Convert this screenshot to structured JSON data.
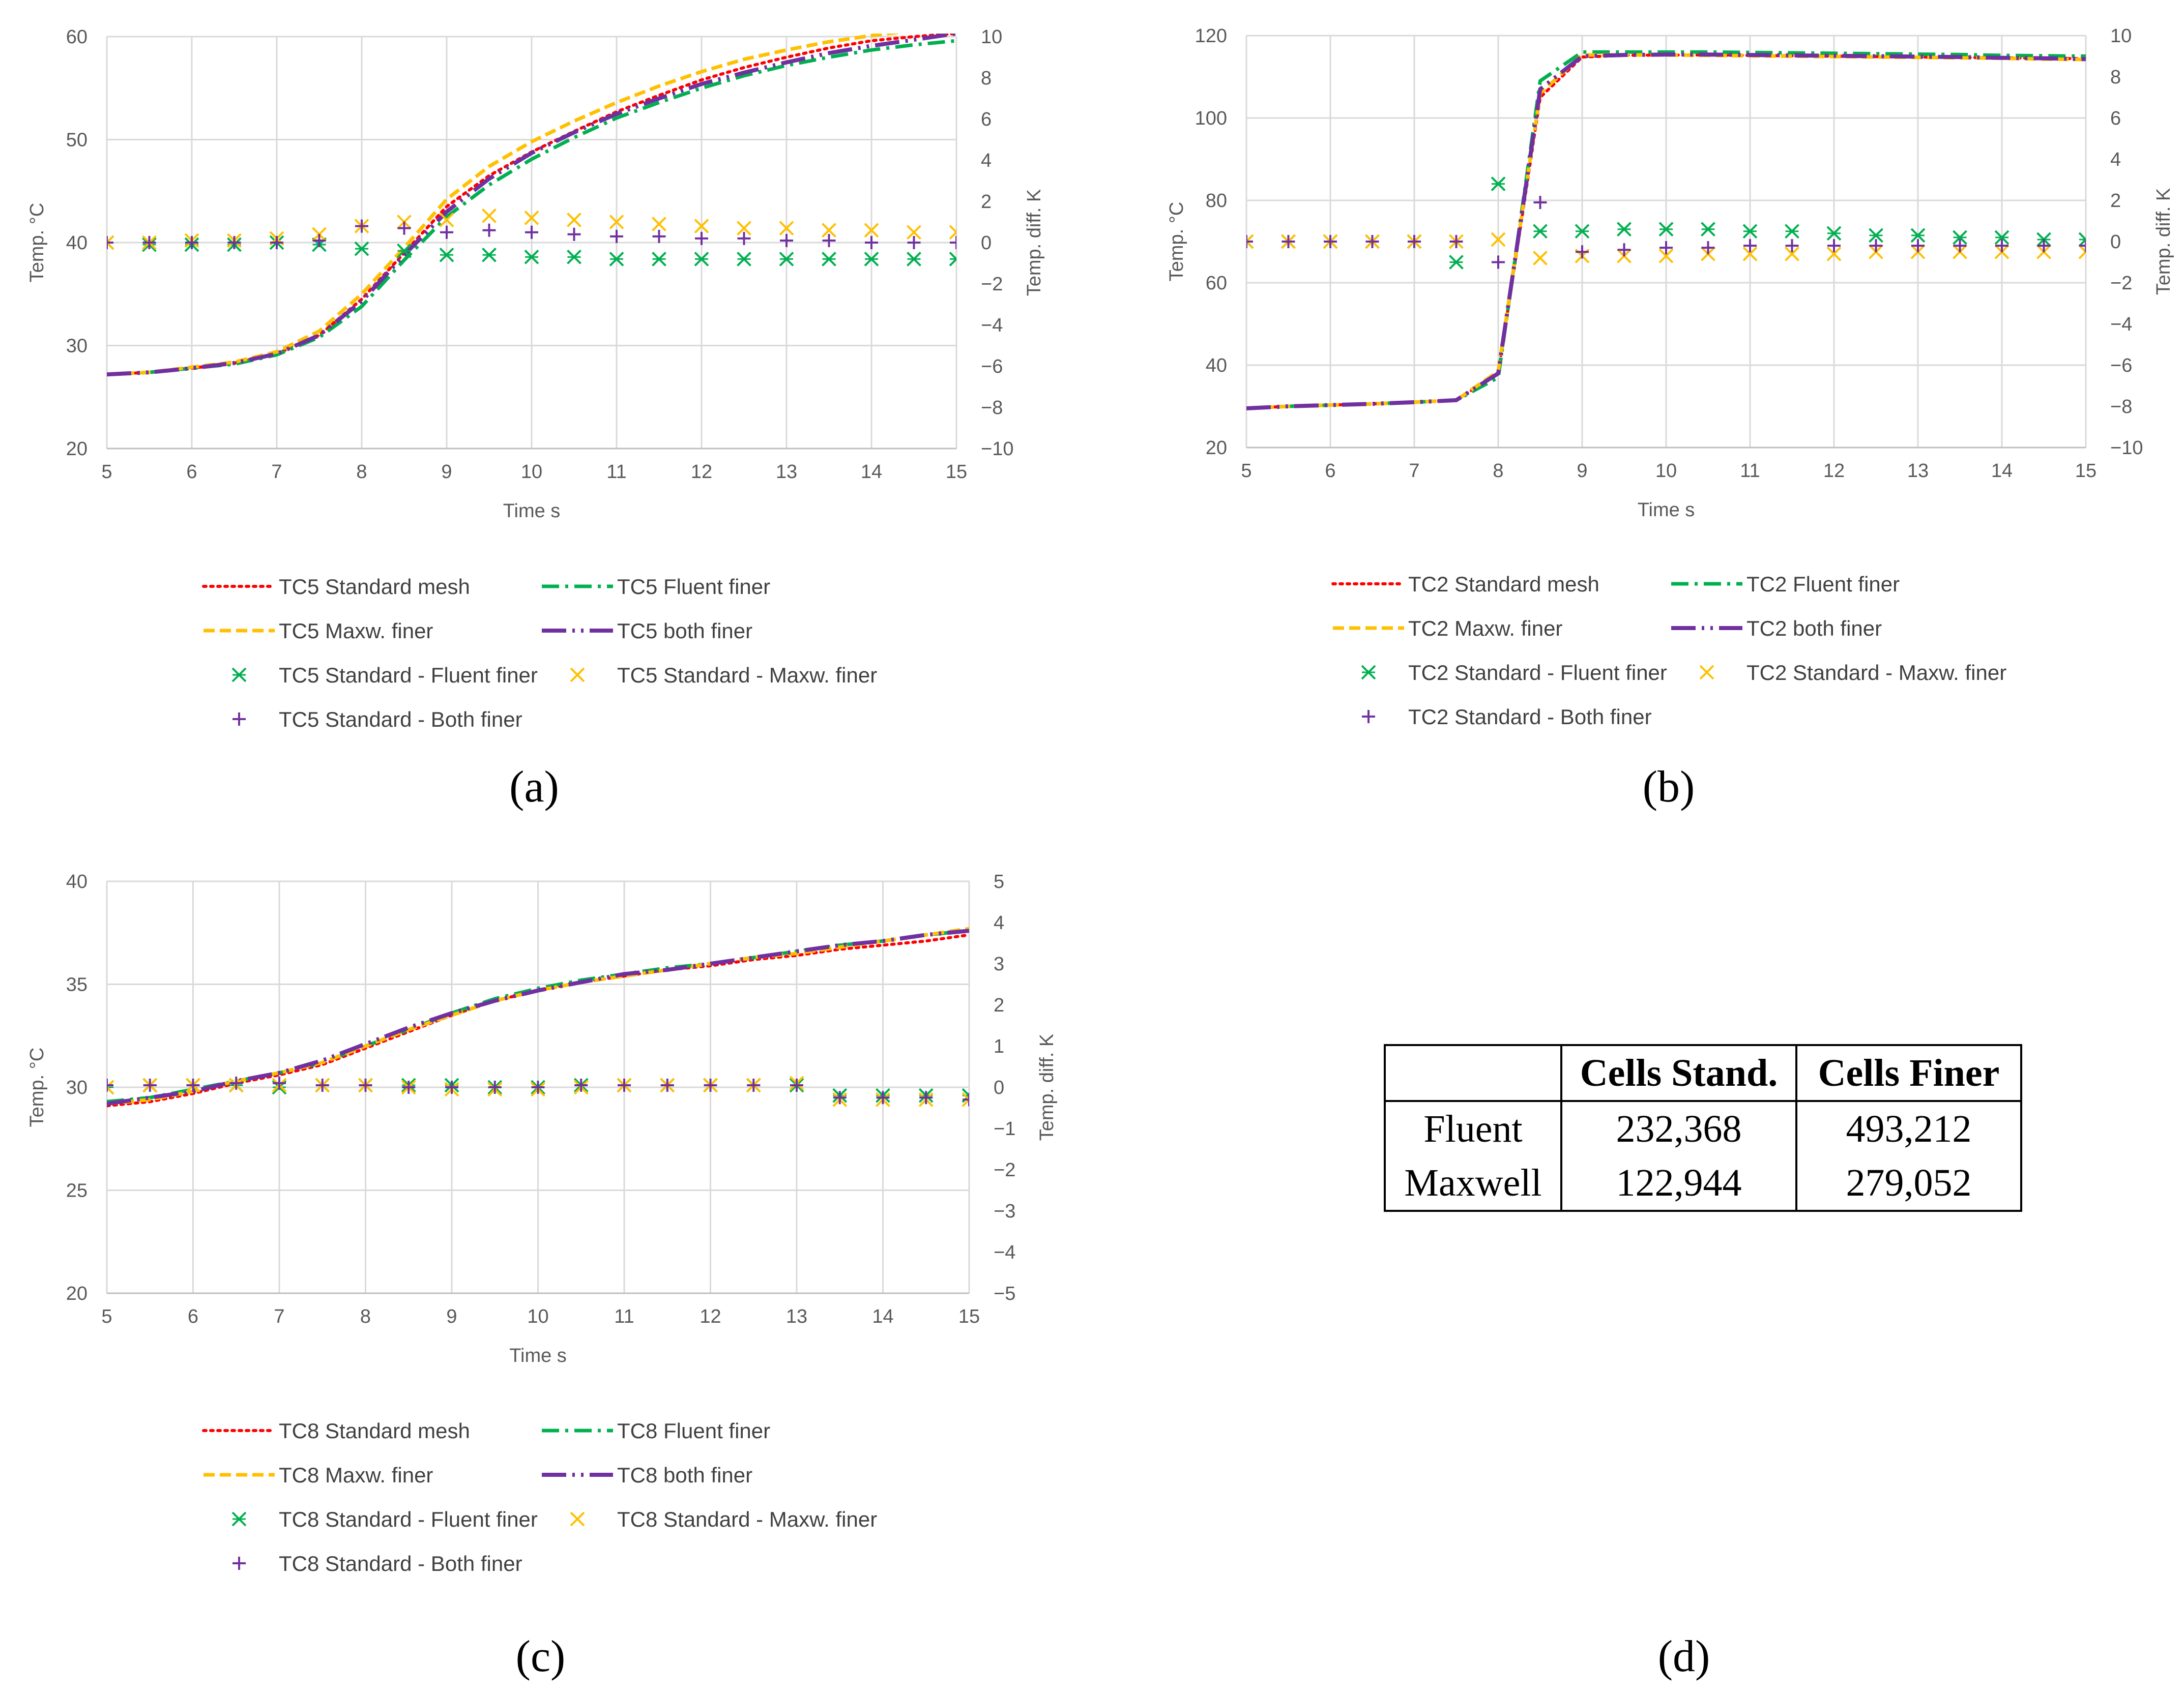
{
  "colors": {
    "standard": "#ff0000",
    "maxw": "#ffc000",
    "fluent": "#00b050",
    "both": "#7030a0",
    "grid": "#d9d9d9",
    "axis": "#bfbfbf"
  },
  "chart_data": [
    {
      "id": "a",
      "type": "line",
      "caption": "(a)",
      "xlabel": "Time s",
      "ylabel": "Temp. °C",
      "y2label": "Temp. diff. K",
      "xlim": [
        5,
        15
      ],
      "ylim": [
        20,
        60
      ],
      "y2lim": [
        -10,
        10
      ],
      "xticks": [
        5,
        6,
        7,
        8,
        9,
        10,
        11,
        12,
        13,
        14,
        15
      ],
      "yticks": [
        20,
        30,
        40,
        50,
        60
      ],
      "y2ticks": [
        -10,
        -8,
        -6,
        -4,
        -2,
        0,
        2,
        4,
        6,
        8,
        10
      ],
      "x": [
        5,
        5.5,
        6,
        6.5,
        7,
        7.5,
        8,
        8.5,
        9,
        9.5,
        10,
        10.5,
        11,
        11.5,
        12,
        12.5,
        13,
        13.5,
        14,
        14.5,
        15
      ],
      "series": [
        {
          "name": "TC5 Standard mesh",
          "style": "standard",
          "axis": "y",
          "values": [
            27.2,
            27.4,
            27.8,
            28.3,
            29.2,
            31.0,
            34.5,
            39.0,
            43.5,
            46.5,
            48.8,
            50.8,
            52.7,
            54.3,
            55.8,
            57.0,
            58.0,
            58.9,
            59.6,
            60.0,
            60.3
          ]
        },
        {
          "name": "TC5 Fluent finer",
          "style": "fluent",
          "axis": "y",
          "values": [
            27.2,
            27.4,
            27.8,
            28.2,
            29.1,
            30.8,
            33.8,
            38.3,
            42.5,
            45.6,
            48.1,
            50.2,
            52.1,
            53.6,
            55.0,
            56.2,
            57.2,
            58.0,
            58.7,
            59.2,
            59.6
          ]
        },
        {
          "name": "TC5 Maxw. finer",
          "style": "maxw",
          "axis": "y",
          "values": [
            27.2,
            27.4,
            27.9,
            28.4,
            29.4,
            31.4,
            35.0,
            39.5,
            44.2,
            47.4,
            49.8,
            51.8,
            53.6,
            55.2,
            56.6,
            57.8,
            58.7,
            59.5,
            60.1,
            60.6,
            61.0
          ]
        },
        {
          "name": "TC5 both finer",
          "style": "both",
          "axis": "y",
          "values": [
            27.2,
            27.4,
            27.8,
            28.3,
            29.2,
            31.0,
            34.3,
            38.8,
            43.0,
            46.2,
            48.7,
            50.7,
            52.5,
            54.0,
            55.4,
            56.5,
            57.5,
            58.4,
            59.1,
            59.7,
            60.3
          ]
        },
        {
          "name": "TC5 Standard - Fluent finer",
          "style": "fluent",
          "marker": "asterisk",
          "axis": "y2",
          "values": [
            0.0,
            -0.1,
            -0.1,
            -0.1,
            0.0,
            -0.1,
            -0.3,
            -0.4,
            -0.6,
            -0.6,
            -0.7,
            -0.7,
            -0.8,
            -0.8,
            -0.8,
            -0.8,
            -0.8,
            -0.8,
            -0.8,
            -0.8,
            -0.8
          ]
        },
        {
          "name": "TC5 Standard - Maxw. finer",
          "style": "maxw",
          "marker": "x",
          "axis": "y2",
          "values": [
            0.0,
            0.0,
            0.1,
            0.1,
            0.2,
            0.4,
            0.8,
            1.0,
            1.1,
            1.3,
            1.2,
            1.1,
            1.0,
            0.9,
            0.8,
            0.7,
            0.7,
            0.6,
            0.6,
            0.5,
            0.5
          ]
        },
        {
          "name": "TC5 Standard - Both finer",
          "style": "both",
          "marker": "plus",
          "axis": "y2",
          "values": [
            0.0,
            0.0,
            0.0,
            0.0,
            0.0,
            0.1,
            0.8,
            0.7,
            0.5,
            0.6,
            0.5,
            0.4,
            0.3,
            0.3,
            0.2,
            0.2,
            0.1,
            0.1,
            0.0,
            0.0,
            0.0
          ]
        }
      ]
    },
    {
      "id": "b",
      "type": "line",
      "caption": "(b)",
      "xlabel": "Time s",
      "ylabel": "Temp. °C",
      "y2label": "Temp. diff. K",
      "xlim": [
        5,
        15
      ],
      "ylim": [
        20,
        120
      ],
      "y2lim": [
        -10,
        10
      ],
      "xticks": [
        5,
        6,
        7,
        8,
        9,
        10,
        11,
        12,
        13,
        14,
        15
      ],
      "yticks": [
        20,
        40,
        60,
        80,
        100,
        120
      ],
      "y2ticks": [
        -10,
        -8,
        -6,
        -4,
        -2,
        0,
        2,
        4,
        6,
        8,
        10
      ],
      "x": [
        5,
        5.5,
        6,
        6.5,
        7,
        7.5,
        8,
        8.5,
        9,
        9.5,
        10,
        10.5,
        11,
        11.5,
        12,
        12.5,
        13,
        13.5,
        14,
        14.5,
        15
      ],
      "series": [
        {
          "name": "TC2 Standard mesh",
          "style": "standard",
          "axis": "y",
          "values": [
            29.5,
            30.0,
            30.3,
            30.6,
            31.0,
            31.5,
            38.0,
            105.0,
            114.8,
            115.2,
            115.3,
            115.3,
            115.2,
            115.1,
            115.0,
            114.9,
            114.8,
            114.7,
            114.6,
            114.5,
            114.4
          ]
        },
        {
          "name": "TC2 Fluent finer",
          "style": "fluent",
          "axis": "y",
          "values": [
            29.5,
            30.0,
            30.3,
            30.6,
            31.0,
            31.5,
            37.0,
            109.0,
            116.0,
            116.0,
            116.0,
            116.0,
            115.9,
            115.8,
            115.7,
            115.6,
            115.5,
            115.4,
            115.2,
            115.1,
            115.0
          ]
        },
        {
          "name": "TC2 Maxw. finer",
          "style": "maxw",
          "axis": "y",
          "values": [
            29.5,
            30.0,
            30.3,
            30.6,
            31.0,
            31.5,
            38.5,
            106.0,
            115.3,
            115.3,
            115.3,
            115.2,
            115.1,
            115.0,
            114.9,
            114.8,
            114.7,
            114.6,
            114.5,
            114.3,
            114.2
          ]
        },
        {
          "name": "TC2 both finer",
          "style": "both",
          "axis": "y",
          "values": [
            29.5,
            30.0,
            30.3,
            30.6,
            31.0,
            31.5,
            38.0,
            107.0,
            115.0,
            115.3,
            115.4,
            115.4,
            115.3,
            115.2,
            115.1,
            115.0,
            114.9,
            114.8,
            114.6,
            114.5,
            114.3
          ]
        },
        {
          "name": "TC2 Standard - Fluent finer",
          "style": "fluent",
          "marker": "asterisk",
          "axis": "y2",
          "values": [
            0.0,
            0.0,
            0.0,
            0.0,
            0.0,
            -1.0,
            2.8,
            0.5,
            0.5,
            0.6,
            0.6,
            0.6,
            0.5,
            0.5,
            0.4,
            0.3,
            0.3,
            0.2,
            0.2,
            0.1,
            0.1
          ]
        },
        {
          "name": "TC2 Standard - Maxw. finer",
          "style": "maxw",
          "marker": "x",
          "axis": "y2",
          "values": [
            0.0,
            0.0,
            0.0,
            0.0,
            0.0,
            0.0,
            0.1,
            -0.8,
            -0.7,
            -0.7,
            -0.7,
            -0.6,
            -0.6,
            -0.6,
            -0.6,
            -0.5,
            -0.5,
            -0.5,
            -0.5,
            -0.5,
            -0.5
          ]
        },
        {
          "name": "TC2 Standard - Both finer",
          "style": "both",
          "marker": "plus",
          "axis": "y2",
          "values": [
            0.0,
            0.0,
            0.0,
            0.0,
            0.0,
            0.0,
            -1.0,
            1.9,
            -0.5,
            -0.4,
            -0.3,
            -0.3,
            -0.2,
            -0.2,
            -0.2,
            -0.2,
            -0.2,
            -0.2,
            -0.2,
            -0.2,
            -0.2
          ]
        }
      ]
    },
    {
      "id": "c",
      "type": "line",
      "caption": "(c)",
      "xlabel": "Time s",
      "ylabel": "Temp. °C",
      "y2label": "Temp. diff. K",
      "xlim": [
        5,
        15
      ],
      "ylim": [
        20,
        40
      ],
      "y2lim": [
        -5,
        5
      ],
      "xticks": [
        5,
        6,
        7,
        8,
        9,
        10,
        11,
        12,
        13,
        14,
        15
      ],
      "yticks": [
        20,
        25,
        30,
        35,
        40
      ],
      "y2ticks": [
        -5,
        -4,
        -3,
        -2,
        -1,
        0,
        1,
        2,
        3,
        4,
        5
      ],
      "x": [
        5,
        5.5,
        6,
        6.5,
        7,
        7.5,
        8,
        8.5,
        9,
        9.5,
        10,
        10.5,
        11,
        11.5,
        12,
        12.5,
        13,
        13.5,
        14,
        14.5,
        15
      ],
      "series": [
        {
          "name": "TC8 Standard mesh",
          "style": "standard",
          "axis": "y",
          "values": [
            29.1,
            29.3,
            29.7,
            30.2,
            30.6,
            31.1,
            31.9,
            32.7,
            33.5,
            34.2,
            34.7,
            35.1,
            35.4,
            35.7,
            35.9,
            36.2,
            36.4,
            36.7,
            36.9,
            37.1,
            37.4
          ]
        },
        {
          "name": "TC8 Fluent finer",
          "style": "fluent",
          "axis": "y",
          "values": [
            29.3,
            29.5,
            29.9,
            30.3,
            30.7,
            31.2,
            32.0,
            32.8,
            33.6,
            34.3,
            34.8,
            35.2,
            35.5,
            35.8,
            36.0,
            36.3,
            36.6,
            36.9,
            37.1,
            37.4,
            37.6
          ]
        },
        {
          "name": "TC8 Maxw. finer",
          "style": "maxw",
          "axis": "y",
          "values": [
            29.2,
            29.4,
            29.8,
            30.3,
            30.7,
            31.2,
            32.0,
            32.8,
            33.5,
            34.2,
            34.7,
            35.1,
            35.4,
            35.7,
            36.0,
            36.3,
            36.5,
            36.8,
            37.1,
            37.4,
            37.7
          ]
        },
        {
          "name": "TC8 both finer",
          "style": "both",
          "axis": "y",
          "values": [
            29.2,
            29.5,
            29.8,
            30.3,
            30.7,
            31.3,
            32.1,
            32.9,
            33.6,
            34.2,
            34.7,
            35.1,
            35.5,
            35.7,
            36.0,
            36.3,
            36.6,
            36.9,
            37.1,
            37.4,
            37.6
          ]
        },
        {
          "name": "TC8 Standard - Fluent finer",
          "style": "fluent",
          "marker": "asterisk",
          "axis": "y2",
          "values": [
            0.0,
            0.05,
            0.05,
            0.05,
            0.0,
            0.05,
            0.05,
            0.05,
            0.05,
            0.0,
            0.0,
            0.05,
            0.05,
            0.05,
            0.05,
            0.05,
            0.05,
            -0.2,
            -0.2,
            -0.2,
            -0.2
          ]
        },
        {
          "name": "TC8 Standard - Maxw. finer",
          "style": "maxw",
          "marker": "x",
          "axis": "y2",
          "values": [
            0.0,
            0.05,
            0.05,
            0.05,
            0.05,
            0.05,
            0.05,
            0.0,
            -0.05,
            -0.05,
            -0.05,
            0.0,
            0.05,
            0.05,
            0.05,
            0.05,
            0.1,
            -0.3,
            -0.3,
            -0.3,
            -0.3
          ]
        },
        {
          "name": "TC8 Standard - Both finer",
          "style": "both",
          "marker": "plus",
          "axis": "y2",
          "values": [
            0.05,
            0.05,
            0.05,
            0.1,
            0.1,
            0.05,
            0.05,
            0.0,
            0.0,
            0.0,
            0.0,
            0.05,
            0.05,
            0.05,
            0.05,
            0.05,
            0.05,
            -0.25,
            -0.25,
            -0.25,
            -0.3
          ]
        }
      ]
    }
  ],
  "table": {
    "caption": "(d)",
    "headers": [
      "",
      "Cells Stand.",
      "Cells Finer"
    ],
    "rows": [
      {
        "label": "Fluent",
        "standard": "232,368",
        "finer": "493,212"
      },
      {
        "label": "Maxwell",
        "standard": "122,944",
        "finer": "279,052"
      }
    ]
  }
}
